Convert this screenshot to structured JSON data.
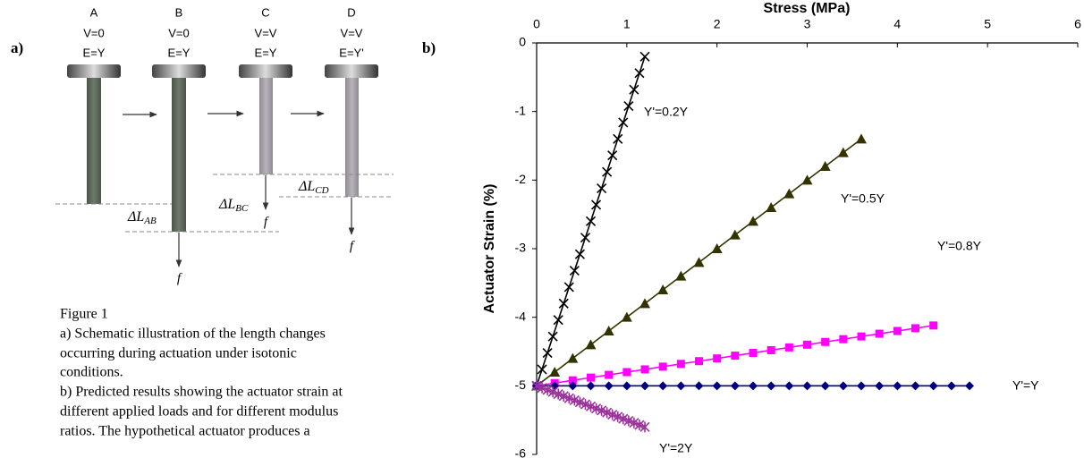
{
  "panel_a": {
    "label": "a)",
    "columns": [
      {
        "letter": "A",
        "v": "V=0",
        "e": "E=Y"
      },
      {
        "letter": "B",
        "v": "V=0",
        "e": "E=Y"
      },
      {
        "letter": "C",
        "v": "V=V",
        "e": "E=Y"
      },
      {
        "letter": "D",
        "v": "V=V",
        "e": "E=Y'"
      }
    ],
    "changes": [
      {
        "symbol": "ΔL",
        "sub": "AB"
      },
      {
        "symbol": "ΔL",
        "sub": "BC"
      },
      {
        "symbol": "ΔL",
        "sub": "CD"
      }
    ],
    "force": "f",
    "caption": {
      "title": "Figure 1",
      "lines": [
        "a) Schematic illustration of the length changes",
        "occurring during actuation under isotonic",
        "conditions.",
        "b) Predicted results showing the actuator strain at",
        "different applied loads and for different modulus",
        "ratios. The hypothetical actuator produces a"
      ]
    }
  },
  "panel_b": {
    "label": "b)"
  },
  "chart_data": {
    "type": "line",
    "x_label": "Stress (MPa)",
    "y_label": "Actuator Strain (%)",
    "xlim": [
      0,
      6
    ],
    "xticks": [
      0,
      1,
      2,
      3,
      4,
      5,
      6
    ],
    "ylim": [
      -6,
      0
    ],
    "yticks": [
      -6,
      -5,
      -4,
      -3,
      -2,
      -1,
      0
    ],
    "x_axis_position": "top",
    "series": [
      {
        "name": "Y'=0.2Y",
        "color": "#000000",
        "marker": "cross",
        "x": [
          0,
          0.06,
          0.12,
          0.18,
          0.24,
          0.3,
          0.36,
          0.42,
          0.48,
          0.54,
          0.6,
          0.66,
          0.72,
          0.78,
          0.84,
          0.9,
          0.96,
          1.02,
          1.08,
          1.14,
          1.2
        ],
        "values": [
          -5,
          -4.76,
          -4.52,
          -4.28,
          -4.04,
          -3.8,
          -3.56,
          -3.32,
          -3.08,
          -2.84,
          -2.6,
          -2.36,
          -2.12,
          -1.88,
          -1.64,
          -1.4,
          -1.16,
          -0.92,
          -0.68,
          -0.44,
          -0.2
        ]
      },
      {
        "name": "Y'=0.5Y",
        "color": "#333300",
        "marker": "triangle",
        "x": [
          0,
          0.2,
          0.4,
          0.6,
          0.8,
          1,
          1.2,
          1.4,
          1.6,
          1.8,
          2,
          2.2,
          2.4,
          2.6,
          2.8,
          3,
          3.2,
          3.4,
          3.6
        ],
        "values": [
          -5,
          -4.8,
          -4.6,
          -4.4,
          -4.2,
          -4,
          -3.8,
          -3.6,
          -3.4,
          -3.2,
          -3,
          -2.8,
          -2.6,
          -2.4,
          -2.2,
          -2,
          -1.8,
          -1.6,
          -1.4
        ]
      },
      {
        "name": "Y'=0.8Y",
        "color": "#ff00ff",
        "marker": "square",
        "x": [
          0,
          0.2,
          0.4,
          0.6,
          0.8,
          1,
          1.2,
          1.4,
          1.6,
          1.8,
          2,
          2.2,
          2.4,
          2.6,
          2.8,
          3,
          3.2,
          3.4,
          3.6,
          3.8,
          4,
          4.2,
          4.4
        ],
        "values": [
          -5,
          -4.96,
          -4.92,
          -4.88,
          -4.84,
          -4.8,
          -4.76,
          -4.72,
          -4.68,
          -4.64,
          -4.6,
          -4.56,
          -4.52,
          -4.48,
          -4.44,
          -4.4,
          -4.36,
          -4.32,
          -4.28,
          -4.24,
          -4.2,
          -4.16,
          -4.12
        ]
      },
      {
        "name": "Y'=Y",
        "color": "#000080",
        "marker": "diamond",
        "x": [
          0,
          0.2,
          0.4,
          0.6,
          0.8,
          1,
          1.2,
          1.4,
          1.6,
          1.8,
          2,
          2.2,
          2.4,
          2.6,
          2.8,
          3,
          3.2,
          3.4,
          3.6,
          3.8,
          4,
          4.2,
          4.4,
          4.6,
          4.8
        ],
        "values": [
          -5,
          -5,
          -5,
          -5,
          -5,
          -5,
          -5,
          -5,
          -5,
          -5,
          -5,
          -5,
          -5,
          -5,
          -5,
          -5,
          -5,
          -5,
          -5,
          -5,
          -5,
          -5,
          -5,
          -5,
          -5
        ]
      },
      {
        "name": "Y'=2Y",
        "color": "#993399",
        "marker": "star",
        "x": [
          0,
          0.06,
          0.12,
          0.18,
          0.24,
          0.3,
          0.36,
          0.42,
          0.48,
          0.54,
          0.6,
          0.66,
          0.72,
          0.78,
          0.84,
          0.9,
          0.96,
          1.02,
          1.08,
          1.14,
          1.2
        ],
        "values": [
          -5,
          -5.03,
          -5.06,
          -5.09,
          -5.12,
          -5.15,
          -5.18,
          -5.21,
          -5.24,
          -5.27,
          -5.3,
          -5.33,
          -5.36,
          -5.39,
          -5.42,
          -5.45,
          -5.48,
          -5.51,
          -5.54,
          -5.57,
          -5.6
        ]
      }
    ]
  }
}
